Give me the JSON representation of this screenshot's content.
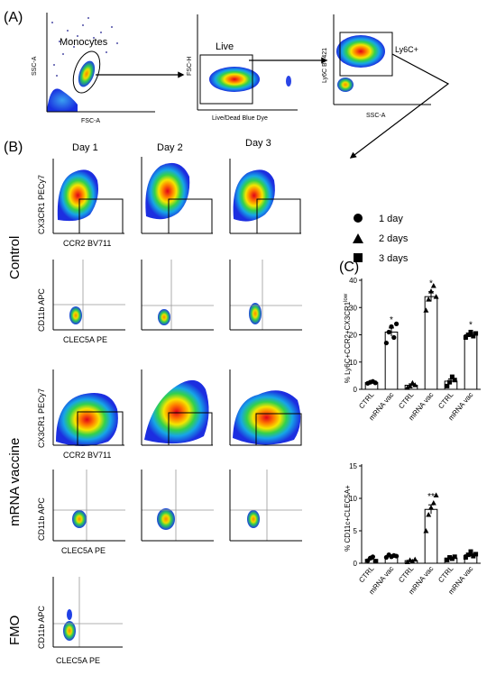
{
  "panel_labels": {
    "a": "(A)",
    "b": "(B)",
    "c": "(C)"
  },
  "gating": {
    "plot1": {
      "ylabel": "SSC-A",
      "xlabel": "FSC-A",
      "gate_label": "Monocytes"
    },
    "plot2": {
      "ylabel": "FSC-H",
      "xlabel": "Live/Dead Blue Dye",
      "gate_label": "Live"
    },
    "plot3": {
      "ylabel": "Ly6C BV421",
      "xlabel": "SSC-A",
      "gate_label": "Ly6C+"
    }
  },
  "panel_b": {
    "days": [
      "Day 1",
      "Day 2",
      "Day 3"
    ],
    "groups": [
      "Control",
      "mRNA vaccine",
      "FMO"
    ],
    "axes": {
      "cx3cr1": "CX3CR1 PECy7",
      "ccr2": "CCR2 BV711",
      "cd11b": "CD11b APC",
      "clec5a": "CLEC5A PE"
    }
  },
  "legend": {
    "items": [
      "1 day",
      "2 days",
      "3 days"
    ],
    "markers": [
      "circle",
      "triangle",
      "square"
    ]
  },
  "chart_data": [
    {
      "type": "bar",
      "ylabel_parts": [
        "% Ly6C+CCR2+CX3CR1",
        "low"
      ],
      "categories": [
        "CTRL",
        "mRNA vac",
        "CTRL",
        "mRNA vac",
        "CTRL",
        "mRNA vac"
      ],
      "values": [
        2.5,
        21,
        1.5,
        34,
        3,
        20
      ],
      "errors": [
        0.4,
        1.5,
        0.5,
        1.8,
        0.8,
        0.7
      ],
      "significance": [
        "",
        "*",
        "",
        "*",
        "",
        "*"
      ],
      "points": [
        [
          2.2,
          2.6,
          2.9,
          2.4
        ],
        [
          17,
          21,
          23,
          19,
          24
        ],
        [
          0.6,
          1.2,
          2.4,
          1.6
        ],
        [
          29,
          33,
          36,
          38,
          34
        ],
        [
          1.2,
          2.6,
          4.6,
          3.4
        ],
        [
          19,
          20,
          21,
          19.5,
          20.5
        ]
      ],
      "day_of_pair": [
        1,
        1,
        2,
        2,
        3,
        3
      ],
      "yticks": [
        0,
        10,
        20,
        30,
        40
      ],
      "ylim": [
        0,
        40
      ]
    },
    {
      "type": "bar",
      "ylabel_parts": [
        "% CD11c+CLEC5A+"
      ],
      "categories": [
        "CTRL",
        "mRNA vac",
        "CTRL",
        "mRNA vac",
        "CTRL",
        "mRNA vac"
      ],
      "values": [
        0.6,
        1.1,
        0.4,
        8.3,
        0.8,
        1.3
      ],
      "errors": [
        0.15,
        0.2,
        0.1,
        0.7,
        0.15,
        0.2
      ],
      "significance": [
        "",
        "",
        "",
        "**",
        "",
        ""
      ],
      "points": [
        [
          0.4,
          0.8,
          1.0,
          0.3
        ],
        [
          0.9,
          1.3,
          1.0,
          1.2,
          1.1
        ],
        [
          0.2,
          0.5,
          0.3,
          0.6
        ],
        [
          5.0,
          7.5,
          8.6,
          9.3,
          10.5
        ],
        [
          0.5,
          0.9,
          0.7,
          1.0
        ],
        [
          0.9,
          1.3,
          1.8,
          1.1,
          1.4
        ]
      ],
      "day_of_pair": [
        1,
        1,
        2,
        2,
        3,
        3
      ],
      "yticks": [
        0,
        5,
        10,
        15
      ],
      "ylim": [
        0,
        15
      ]
    }
  ]
}
